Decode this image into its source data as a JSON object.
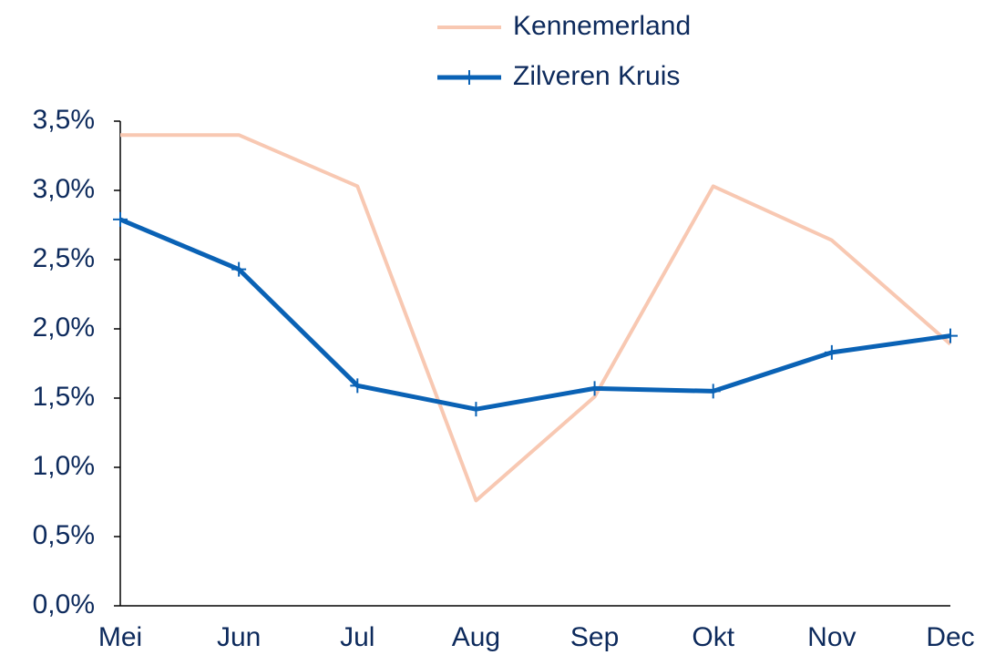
{
  "chart_data": {
    "type": "line",
    "categories": [
      "Mei",
      "Jun",
      "Jul",
      "Aug",
      "Sep",
      "Okt",
      "Nov",
      "Dec"
    ],
    "series": [
      {
        "name": "Kennemerland",
        "color": "#f8c8b2",
        "values": [
          3.4,
          3.4,
          3.03,
          0.76,
          1.51,
          3.03,
          2.64,
          1.89
        ]
      },
      {
        "name": "Zilveren Kruis",
        "color": "#0a62b5",
        "marker": "+",
        "values": [
          2.79,
          2.43,
          1.59,
          1.42,
          1.57,
          1.55,
          1.83,
          1.95
        ]
      }
    ],
    "ylim": [
      0,
      3.5
    ],
    "yticks": [
      {
        "value": 0,
        "label": "0,0%"
      },
      {
        "value": 0.5,
        "label": "0,5%"
      },
      {
        "value": 1,
        "label": "1,0%"
      },
      {
        "value": 1.5,
        "label": "1,5%"
      },
      {
        "value": 2,
        "label": "2,0%"
      },
      {
        "value": 2.5,
        "label": "2,5%"
      },
      {
        "value": 3,
        "label": "3,0%"
      },
      {
        "value": 3.5,
        "label": "3,5%"
      }
    ],
    "grid": false,
    "legend": "top"
  }
}
